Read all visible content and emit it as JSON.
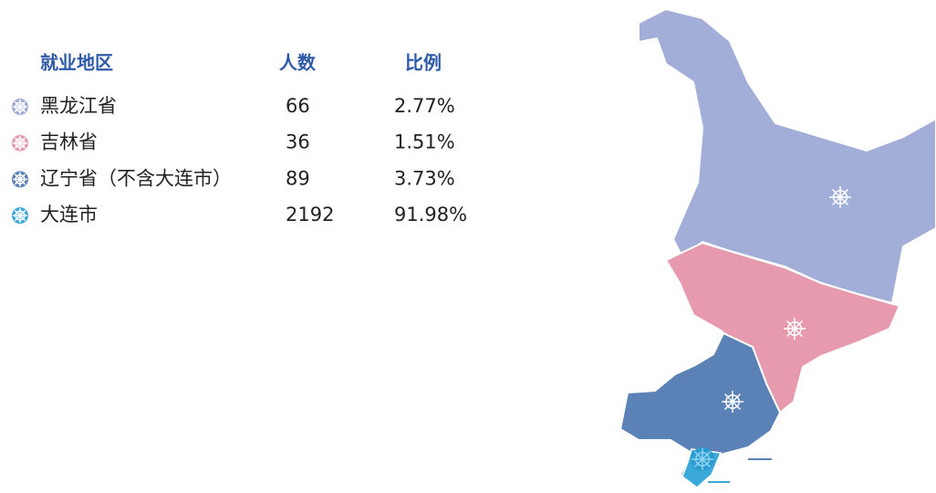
{
  "table": {
    "headers": [
      "就业地区",
      "人数",
      "比例"
    ],
    "rows": [
      [
        "黑龙江省",
        "66",
        "2.77%"
      ],
      [
        "吉林省",
        "36",
        "1.51%"
      ],
      [
        "辽宁省（不含大连市）",
        "89",
        "3.73%"
      ],
      [
        "大连市",
        "2192",
        "91.98%"
      ]
    ]
  }
}
